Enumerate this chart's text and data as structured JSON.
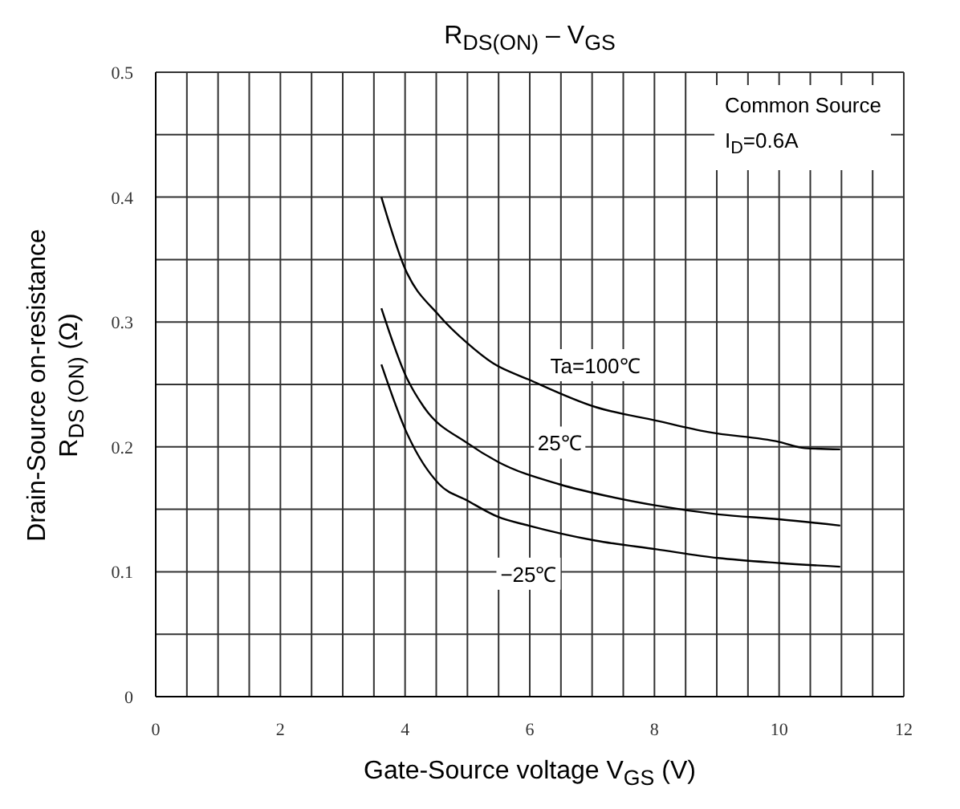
{
  "chart_data": {
    "type": "line",
    "title": "R$_{DS(ON)}$ – V$_{GS}$",
    "xlabel": "Gate-Source voltage   V$_{GS}$   (V)",
    "ylabel": "Drain-Source on-resistance\nR$_{DS (ON)}$   (Ω)",
    "xlim": [
      0,
      12
    ],
    "xticks": [
      0,
      {
        "value": 0.5,
        "label": null
      },
      {
        "value": 1,
        "label": null
      },
      {
        "value": 1.5,
        "label": null
      },
      2,
      {
        "value": 2.5,
        "label": null
      },
      {
        "value": 3,
        "label": null
      },
      {
        "value": 3.5,
        "label": null
      },
      4,
      {
        "value": 4.5,
        "label": null
      },
      {
        "value": 5,
        "label": null
      },
      {
        "value": 5.5,
        "label": null
      },
      6,
      {
        "value": 6.5,
        "label": null
      },
      {
        "value": 7,
        "label": null
      },
      {
        "value": 7.5,
        "label": null
      },
      8,
      {
        "value": 8.5,
        "label": null
      },
      {
        "value": 9,
        "label": null
      },
      {
        "value": 9.5,
        "label": null
      },
      10,
      {
        "value": 10.5,
        "label": null
      },
      {
        "value": 11,
        "label": null
      },
      {
        "value": 11.5,
        "label": null
      },
      12
    ],
    "ylim": [
      0,
      0.5
    ],
    "yticks": [
      0,
      {
        "value": 0.05,
        "label": null
      },
      0.1,
      {
        "value": 0.15,
        "label": null
      },
      0.2,
      {
        "value": 0.25,
        "label": null
      },
      0.3,
      {
        "value": 0.35,
        "label": null
      },
      0.4,
      {
        "value": 0.45,
        "label": null
      },
      0.5
    ],
    "grid": true,
    "series": [
      {
        "name": "Ta=100℃",
        "color": "#000000",
        "x": [
          3.62,
          3.98,
          4.55,
          5.0,
          5.41,
          5.98,
          7.05,
          8.03,
          8.85,
          10.0,
          10.41,
          10.98
        ],
        "values": [
          0.4,
          0.345,
          0.305,
          0.283,
          0.267,
          0.254,
          0.232,
          0.221,
          0.212,
          0.204,
          0.199,
          0.198
        ]
      },
      {
        "name": "25℃",
        "color": "#000000",
        "x": [
          3.62,
          4.02,
          4.3,
          5.0,
          5.49,
          6.48,
          7.3,
          8.03,
          9.02,
          10.0,
          10.98
        ],
        "values": [
          0.311,
          0.256,
          0.232,
          0.203,
          0.188,
          0.17,
          0.16,
          0.153,
          0.146,
          0.142,
          0.137
        ]
      },
      {
        "name": "−25℃",
        "color": "#000000",
        "x": [
          3.62,
          4.02,
          4.55,
          5.0,
          5.49,
          5.98,
          7.05,
          8.03,
          9.02,
          10.0,
          10.98
        ],
        "values": [
          0.266,
          0.212,
          0.17,
          0.157,
          0.144,
          0.137,
          0.125,
          0.118,
          0.111,
          0.107,
          0.104
        ]
      }
    ],
    "annotations": [
      "Common Source",
      "I$_{D}$=0.6A"
    ]
  }
}
